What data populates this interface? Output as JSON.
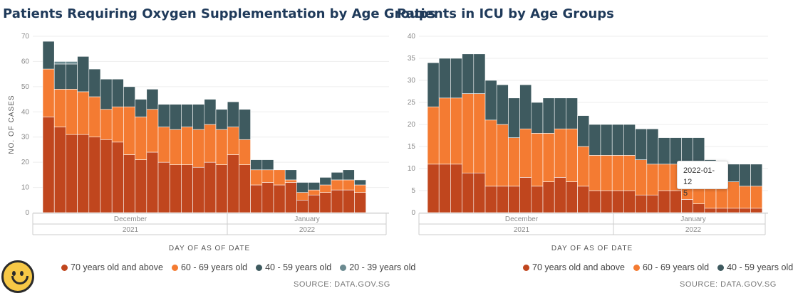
{
  "colors": {
    "s70": "#c0461e",
    "s60": "#f47b32",
    "s40": "#3e5a5f",
    "s20": "#6b8a90",
    "grid": "#eeeeee",
    "axis": "#cccccc",
    "bar_stroke": "#ffffff"
  },
  "chart_data": [
    {
      "type": "bar",
      "stacked": true,
      "title": "Patients Requiring Oxygen Supplementation by Age Groups",
      "ylabel": "NO. OF CASES",
      "xlabel": "DAY OF AS OF DATE",
      "ylim": [
        0,
        70
      ],
      "yticks": [
        0,
        10,
        20,
        30,
        40,
        50,
        60,
        70
      ],
      "month_labels": [
        "December",
        "January"
      ],
      "year_labels": [
        "2021",
        "2022"
      ],
      "series": [
        {
          "name": "70 years old and above",
          "color_key": "s70",
          "values": [
            38,
            34,
            31,
            31,
            30,
            29,
            28,
            23,
            21,
            24,
            20,
            19,
            19,
            18,
            20,
            19,
            23,
            19,
            11,
            12,
            11,
            12,
            5,
            7,
            8,
            9,
            9,
            8
          ]
        },
        {
          "name": "60 - 69 years old",
          "color_key": "s60",
          "values": [
            19,
            15,
            18,
            17,
            16,
            12,
            14,
            19,
            17,
            17,
            14,
            14,
            15,
            15,
            15,
            14,
            11,
            10,
            6,
            5,
            6,
            1,
            3,
            2,
            3,
            4,
            4,
            3
          ]
        },
        {
          "name": "40 - 59 years old",
          "color_key": "s40",
          "values": [
            11,
            10,
            10,
            14,
            11,
            12,
            11,
            8,
            7,
            8,
            9,
            10,
            9,
            10,
            10,
            8,
            10,
            12,
            4,
            4,
            0,
            4,
            4,
            3,
            3,
            3,
            4,
            2
          ]
        },
        {
          "name": "20 - 39 years old",
          "color_key": "s20",
          "values": [
            0,
            1,
            1,
            0,
            0,
            0,
            0,
            0,
            0,
            0,
            0,
            0,
            0,
            0,
            0,
            0,
            0,
            0,
            0,
            0,
            0,
            0,
            0,
            0,
            0,
            0,
            0,
            0
          ]
        }
      ],
      "gaps_after_index": [
        17,
        21
      ]
    },
    {
      "type": "bar",
      "stacked": true,
      "title": "Patients in ICU by Age Groups",
      "ylabel": "",
      "xlabel": "DAY OF AS OF DATE",
      "ylim": [
        0,
        40
      ],
      "yticks": [
        0,
        5,
        10,
        15,
        20,
        25,
        30,
        35,
        40
      ],
      "month_labels": [
        "December",
        "January"
      ],
      "year_labels": [
        "2021",
        "2022"
      ],
      "series": [
        {
          "name": "70 years old and above",
          "color_key": "s70",
          "values": [
            11,
            11,
            11,
            9,
            9,
            6,
            6,
            6,
            8,
            6,
            7,
            8,
            7,
            6,
            5,
            5,
            5,
            5,
            4,
            4,
            5,
            5,
            3,
            2,
            1,
            1,
            1,
            1,
            1
          ]
        },
        {
          "name": "60 - 69 years old",
          "color_key": "s60",
          "values": [
            13,
            15,
            15,
            18,
            18,
            15,
            14,
            11,
            11,
            12,
            11,
            11,
            12,
            9,
            8,
            8,
            8,
            8,
            8,
            7,
            6,
            6,
            7,
            8,
            7,
            6,
            6,
            5,
            5
          ]
        },
        {
          "name": "40 - 59 years old",
          "color_key": "s40",
          "values": [
            10,
            9,
            9,
            9,
            9,
            9,
            9,
            9,
            10,
            7,
            8,
            7,
            7,
            7,
            7,
            7,
            7,
            7,
            7,
            8,
            6,
            6,
            7,
            7,
            4,
            4,
            4,
            5,
            5
          ]
        }
      ],
      "highlight": {
        "index": 27,
        "date": "2022-01-12",
        "value": "5"
      }
    }
  ],
  "legend": {
    "left": [
      "70 years old and above",
      "60 - 69 years old",
      "40 - 59 years old",
      "20 - 39 years old"
    ],
    "right": [
      "70 years old and above",
      "60 - 69 years old",
      "40 - 59 years old"
    ]
  },
  "tooltip": {
    "date": "2022-01-12",
    "value": "5"
  },
  "source_left": "SOURCE: DATA.GOV.SG",
  "source_right": "SOURCE: DATA.GOV.SG"
}
